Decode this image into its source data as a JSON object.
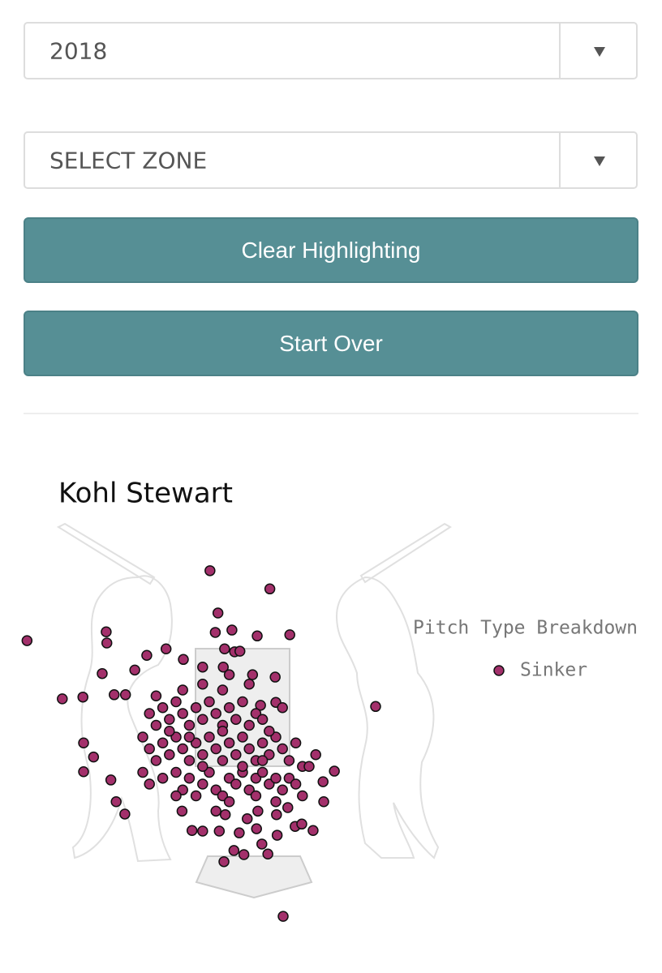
{
  "controls": {
    "season_select": "2018",
    "zone_select": "SELECT ZONE",
    "buttons": [
      "Clear Highlighting",
      "Start Over"
    ]
  },
  "chart_data": {
    "type": "scatter",
    "title": "Kohl Stewart",
    "legend_title": "Pitch Type Breakdown",
    "xlim": [
      -3.4,
      3.4
    ],
    "ylim": [
      -1.5,
      5
    ],
    "series": [
      {
        "name": "Sinker",
        "color": "#a3306b",
        "x": [
          -3.24,
          -0.49,
          0.41,
          -0.37,
          -2.05,
          -2.04,
          -0.41,
          -0.16,
          0.22,
          0.71,
          -1.15,
          -0.89,
          -1.44,
          -0.12,
          -0.27,
          -0.04,
          -2.11,
          -1.62,
          -0.6,
          -0.29,
          -0.2,
          0.15,
          0.49,
          -2.71,
          -2.4,
          -1.93,
          -1.76,
          2.0,
          0.5,
          0.6,
          0.27,
          -2.39,
          -2.24,
          -2.39,
          -1.98,
          -1.9,
          -1.77,
          1.38,
          1.21,
          1.22,
          1.06,
          0.79,
          0.61,
          -0.28,
          0.02,
          -0.13,
          0.38,
          0.29,
          -0.76,
          -0.6,
          -0.35,
          -0.05,
          0.21,
          0.52,
          -0.91,
          -0.4,
          -0.26,
          0.07,
          0.23,
          0.51,
          0.68,
          0.89,
          -1.4,
          -1.3,
          -1.2,
          -1.1,
          -1.0,
          -0.9,
          -0.8,
          -0.7,
          -0.6,
          -0.5,
          -0.4,
          -0.3,
          -0.2,
          -0.1,
          0.0,
          0.1,
          0.2,
          -1.5,
          -1.4,
          -1.3,
          -1.2,
          -1.1,
          -1.0,
          -0.9,
          -0.8,
          -0.7,
          -0.6,
          -0.5,
          -0.4,
          -0.3,
          -0.2,
          -0.1,
          0.0,
          0.1,
          0.2,
          0.3,
          0.4,
          0.5,
          0.6,
          0.7,
          0.8,
          0.9,
          -1.5,
          -1.4,
          -1.2,
          -1.0,
          -0.9,
          -0.8,
          -0.6,
          -0.5,
          -0.4,
          -0.2,
          -0.1,
          0.0,
          0.1,
          0.2,
          0.3,
          0.4,
          0.5,
          0.6,
          0.7,
          0.8,
          1.0,
          -1.3,
          -0.9,
          -0.6,
          -0.3,
          0.1,
          0.3,
          0.4,
          -1.0,
          -0.7,
          -0.3,
          0.2,
          0.5,
          -0.2,
          0.3,
          -0.8,
          -0.3,
          0.0,
          -1.1,
          -0.6,
          1.1,
          0.9
        ],
        "y": [
          3.64,
          4.83,
          4.52,
          4.11,
          3.79,
          3.6,
          3.78,
          3.82,
          3.72,
          3.74,
          3.5,
          3.32,
          3.39,
          3.45,
          3.5,
          3.46,
          3.08,
          3.14,
          3.19,
          3.19,
          3.06,
          3.06,
          3.02,
          2.65,
          2.68,
          2.72,
          2.72,
          2.52,
          2.59,
          2.5,
          2.54,
          1.9,
          1.66,
          1.41,
          1.27,
          0.9,
          0.69,
          1.42,
          1.24,
          0.9,
          0.41,
          0.48,
          -1.05,
          -0.12,
          0,
          0.07,
          0.01,
          0.18,
          0.41,
          0.4,
          0.4,
          0.37,
          0.44,
          0.33,
          0.74,
          0.74,
          0.68,
          0.61,
          0.74,
          0.68,
          0.8,
          0.52,
          2.4,
          2.2,
          2.5,
          2.3,
          2.6,
          2.4,
          2.2,
          2.5,
          2.3,
          2.6,
          2.4,
          2.2,
          2.5,
          2.3,
          2.6,
          2.2,
          2.4,
          2.0,
          1.8,
          1.6,
          1.9,
          1.7,
          2.0,
          1.8,
          1.6,
          1.9,
          1.7,
          2.0,
          1.8,
          1.6,
          1.9,
          1.7,
          2.0,
          1.8,
          1.6,
          1.9,
          1.7,
          2.0,
          1.8,
          1.6,
          1.9,
          1.5,
          1.4,
          1.2,
          1.3,
          1.4,
          1.1,
          1.3,
          1.2,
          1.4,
          1.1,
          1.3,
          1.2,
          1.4,
          1.1,
          1.3,
          1.4,
          1.2,
          1.3,
          1.1,
          1.3,
          1.2,
          1.5,
          2.7,
          2.8,
          2.9,
          2.8,
          2.9,
          2.3,
          2.1,
          1.0,
          1.0,
          1.0,
          1.0,
          0.9,
          0.9,
          1.6,
          2.0,
          2.1,
          1.5,
          2.1,
          1.5,
          1.7,
          1.0
        ]
      }
    ]
  }
}
